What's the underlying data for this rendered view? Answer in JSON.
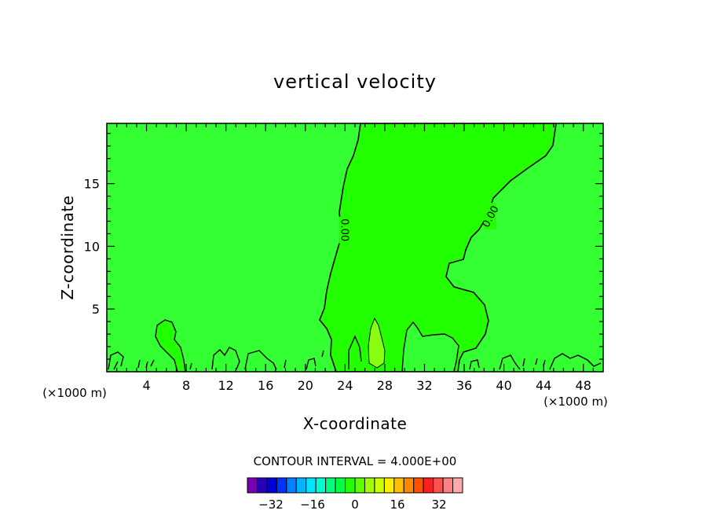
{
  "chart_data": {
    "type": "contour",
    "title": "vertical velocity",
    "xlabel": "X-coordinate",
    "ylabel": "Z-coordinate",
    "x_unit_left": "(×1000 m)",
    "x_unit_right": "(×1000 m)",
    "xlim": [
      0,
      50
    ],
    "ylim": [
      0,
      19.8
    ],
    "x_ticks": [
      4,
      8,
      12,
      16,
      20,
      24,
      28,
      32,
      36,
      40,
      44,
      48
    ],
    "y_ticks": [
      5,
      10,
      15
    ],
    "contour_interval_label": "CONTOUR INTERVAL = 4.000E+00",
    "contour_labels": [
      {
        "text": "0.00",
        "x": 24.0,
        "y": 11.3
      },
      {
        "text": "0.00",
        "x": 38.6,
        "y": 12.4
      }
    ],
    "regions": [
      {
        "name": "negative",
        "fill": "#33ff33"
      },
      {
        "name": "near-zero positive",
        "fill": "#22ff00"
      },
      {
        "name": "positive",
        "fill": "#88ff11"
      }
    ],
    "colorbar": {
      "colors": [
        "#7a00b4",
        "#2a00b4",
        "#0000d8",
        "#0033ff",
        "#0080ff",
        "#00b4ff",
        "#00e6ff",
        "#00ffd0",
        "#00ff80",
        "#00ff40",
        "#22ff00",
        "#60ff00",
        "#a0ff00",
        "#ccff00",
        "#ffee00",
        "#ffc000",
        "#ff8800",
        "#ff5000",
        "#ff1e1e",
        "#ff5050",
        "#ff8080",
        "#ffaaaa"
      ],
      "tick_labels": [
        "−32",
        "−16",
        "0",
        "16",
        "32"
      ]
    }
  }
}
